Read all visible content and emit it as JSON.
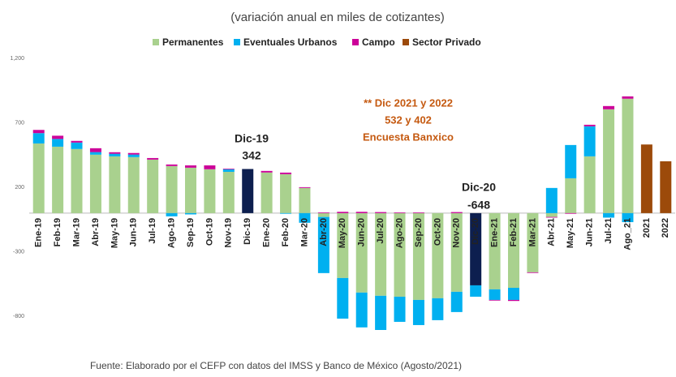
{
  "chart_data": {
    "type": "stacked_bar",
    "title": "(variación anual en miles de cotizantes)",
    "source": "Fuente: Elaborado por el CEFP con datos del IMSS y Banco de México (Agosto/2021)",
    "categories": [
      "Ene-19",
      "Feb-19",
      "Mar-19",
      "Abr-19",
      "May-19",
      "Jun-19",
      "Jul-19",
      "Ago-19",
      "Sep-19",
      "Oct-19",
      "Nov-19",
      "Dic-19",
      "Ene-20",
      "Feb-20",
      "Mar-20",
      "Abr-20",
      "May-20",
      "Jun-20",
      "Jul-20",
      "Ago-20",
      "Sep-20",
      "Oct-20",
      "Nov-20",
      "Dic-20",
      "Ene-21",
      "Feb-21",
      "Mar-21",
      "Abr-21",
      "May-21",
      "Jun-21",
      "Jul-21",
      "Ago_21",
      "2021",
      "2022"
    ],
    "series": [
      {
        "name": "Permanentes",
        "color": "#a9d18e",
        "colors": [
          "#a9d18e",
          "#a9d18e",
          "#a9d18e",
          "#a9d18e",
          "#a9d18e",
          "#a9d18e",
          "#a9d18e",
          "#a9d18e",
          "#a9d18e",
          "#a9d18e",
          "#a9d18e",
          "#0d1f4f",
          "#a9d18e",
          "#a9d18e",
          "#a9d18e",
          "#a9d18e",
          "#a9d18e",
          "#a9d18e",
          "#a9d18e",
          "#a9d18e",
          "#a9d18e",
          "#a9d18e",
          "#a9d18e",
          "#0d1f4f",
          "#a9d18e",
          "#a9d18e",
          "#a9d18e",
          "#a9d18e",
          "#a9d18e",
          "#a9d18e",
          "#a9d18e",
          "#a9d18e",
          "#a9d18e",
          "#a9d18e"
        ],
        "values": [
          540,
          515,
          497,
          453,
          440,
          434,
          415,
          365,
          352,
          340,
          320,
          342,
          315,
          302,
          195,
          -30,
          -503,
          -616,
          -641,
          -648,
          -673,
          -660,
          -610,
          -560,
          -591,
          -579,
          -459,
          -30,
          270,
          440,
          805,
          887,
          null,
          null
        ]
      },
      {
        "name": "Eventuales Urbanos",
        "color": "#00b0f0",
        "values": [
          80,
          60,
          50,
          20,
          20,
          20,
          null,
          -25,
          -10,
          null,
          20,
          null,
          null,
          -5,
          -75,
          -435,
          -315,
          -270,
          -265,
          -195,
          -195,
          -170,
          -157,
          -88,
          -82,
          -94,
          null,
          195,
          258,
          233,
          -35,
          -70,
          null,
          null
        ]
      },
      {
        "name": "Campo",
        "color": "#cc0099",
        "values": [
          25,
          25,
          13,
          30,
          12,
          12,
          12,
          12,
          18,
          30,
          5,
          null,
          12,
          12,
          6,
          5,
          10,
          10,
          8,
          5,
          5,
          null,
          8,
          null,
          -5,
          -8,
          -5,
          -5,
          -5,
          12,
          25,
          18,
          null,
          null
        ]
      },
      {
        "name": "Sector Privado",
        "color": "#9c4a0a",
        "values": [
          null,
          null,
          null,
          null,
          null,
          null,
          null,
          null,
          null,
          null,
          null,
          null,
          null,
          null,
          null,
          null,
          null,
          null,
          null,
          null,
          null,
          null,
          null,
          null,
          null,
          null,
          null,
          null,
          null,
          null,
          null,
          null,
          532,
          402
        ]
      }
    ],
    "ylim": [
      -950,
      1250
    ],
    "yticks": [
      -800,
      -300,
      200,
      700,
      {
        "value": 1200,
        "label": "1,200"
      }
    ],
    "annotations": [
      "Dic-19",
      "342",
      "Dic-20",
      "-648",
      "** Dic 2021 y 2022",
      "532 y 402",
      "Encuesta Banxico"
    ]
  }
}
